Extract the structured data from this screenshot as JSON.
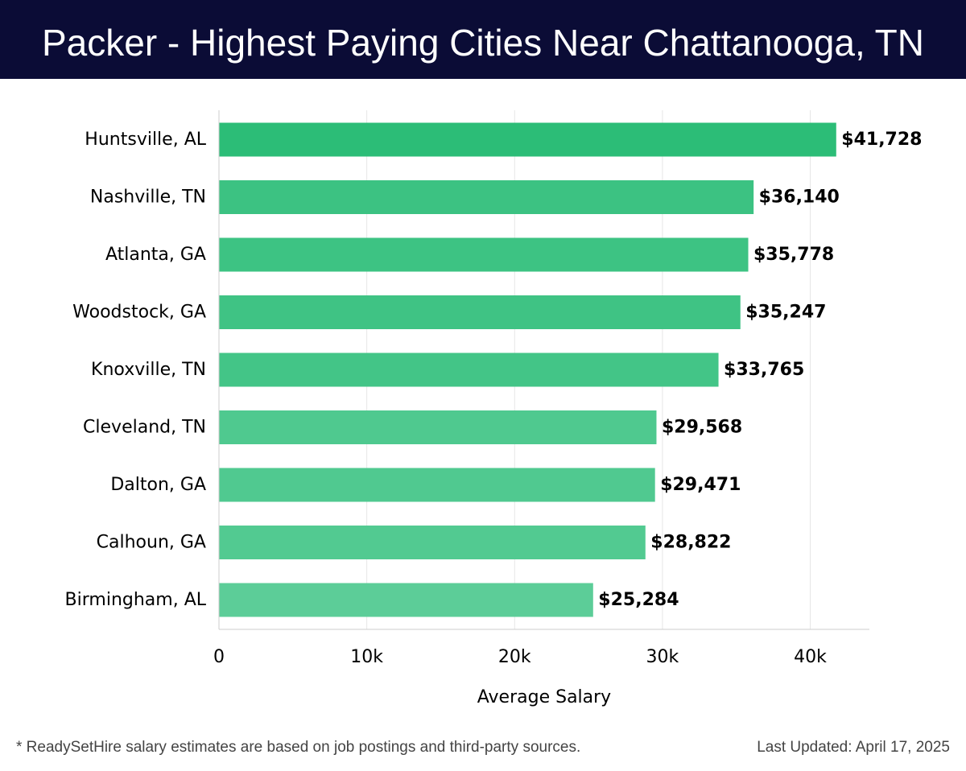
{
  "header": {
    "title": "Packer - Highest Paying Cities Near Chattanooga, TN"
  },
  "chart_data": {
    "type": "bar",
    "orientation": "horizontal",
    "title": "Packer - Highest Paying Cities Near Chattanooga, TN",
    "xlabel": "Average Salary",
    "ylabel": "",
    "categories": [
      "Huntsville, AL",
      "Nashville, TN",
      "Atlanta, GA",
      "Woodstock, GA",
      "Knoxville, TN",
      "Cleveland, TN",
      "Dalton, GA",
      "Calhoun, GA",
      "Birmingham, AL"
    ],
    "values": [
      41728,
      36140,
      35778,
      35247,
      33765,
      29568,
      29471,
      28822,
      25284
    ],
    "data_labels": [
      "$41,728",
      "$36,140",
      "$35,778",
      "$35,247",
      "$33,765",
      "$29,568",
      "$29,471",
      "$28,822",
      "$25,284"
    ],
    "xlim": [
      0,
      44000
    ],
    "x_ticks": [
      0,
      10000,
      20000,
      30000,
      40000
    ],
    "x_tick_labels": [
      "0",
      "10k",
      "20k",
      "30k",
      "40k"
    ],
    "grid": "vertical",
    "legend": "none",
    "colors": {
      "bar_max": "#2cbd77",
      "bar_min": "#5ccd98",
      "grid": "#e6e6e6",
      "axis": "#cccccc",
      "label_text": "#000000",
      "header_bg": "#0b0c36"
    }
  },
  "footer": {
    "note": "* ReadySetHire salary estimates are based on job postings and third-party sources.",
    "updated": "Last Updated: April 17, 2025"
  }
}
